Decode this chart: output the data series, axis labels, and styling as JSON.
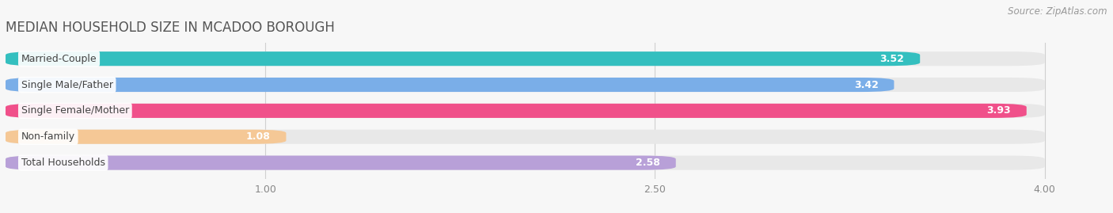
{
  "title": "MEDIAN HOUSEHOLD SIZE IN MCADOO BOROUGH",
  "source": "Source: ZipAtlas.com",
  "categories": [
    "Married-Couple",
    "Single Male/Father",
    "Single Female/Mother",
    "Non-family",
    "Total Households"
  ],
  "values": [
    3.52,
    3.42,
    3.93,
    1.08,
    2.58
  ],
  "bar_colors": [
    "#34bfbf",
    "#7aaee8",
    "#f0508a",
    "#f5c896",
    "#b8a0d8"
  ],
  "xlim_min": 0,
  "xlim_max": 4.22,
  "data_max": 4.0,
  "xticks": [
    1.0,
    2.5,
    4.0
  ],
  "xtick_labels": [
    "1.00",
    "2.50",
    "4.00"
  ],
  "background_color": "#f7f7f7",
  "bar_bg_color": "#e8e8e8",
  "title_fontsize": 12,
  "source_fontsize": 8.5,
  "label_fontsize": 9,
  "value_fontsize": 9,
  "bar_height": 0.55,
  "bar_gap": 1.0
}
